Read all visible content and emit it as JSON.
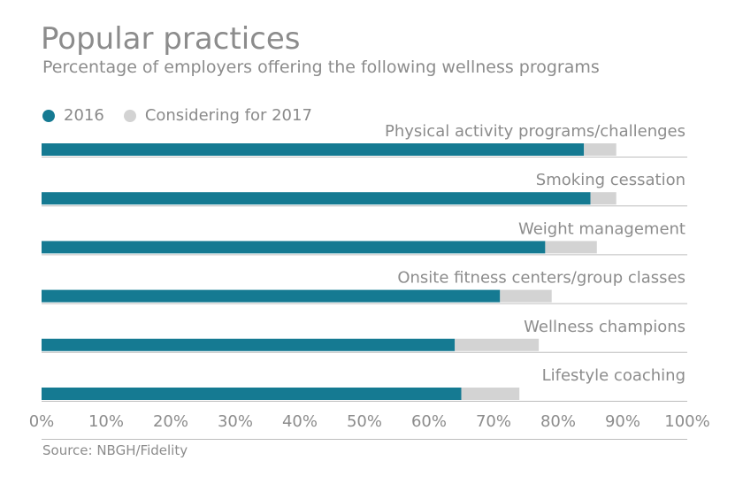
{
  "chart_data": {
    "type": "bar",
    "orientation": "horizontal",
    "stacked": true,
    "title": "Popular practices",
    "subtitle": "Percentage of employers offering the following wellness programs",
    "categories": [
      "Physical activity programs/challenges",
      "Smoking cessation",
      "Weight management",
      "Onsite fitness centers/group classes",
      "Wellness champions",
      "Lifestyle coaching"
    ],
    "series": [
      {
        "name": "2016",
        "color": "#157a92",
        "values": [
          84,
          85,
          78,
          71,
          64,
          65
        ]
      },
      {
        "name": "Considering for 2017",
        "color": "#d3d3d3",
        "values": [
          5,
          4,
          8,
          8,
          13,
          9
        ]
      }
    ],
    "xlim": [
      0,
      100
    ],
    "xticks": [
      0,
      10,
      20,
      30,
      40,
      50,
      60,
      70,
      80,
      90,
      100
    ],
    "xtick_labels": [
      "0%",
      "10%",
      "20%",
      "30%",
      "40%",
      "50%",
      "60%",
      "70%",
      "80%",
      "90%",
      "100%"
    ],
    "legend_position": "top-left",
    "source": "Source: NBGH/Fidelity"
  }
}
